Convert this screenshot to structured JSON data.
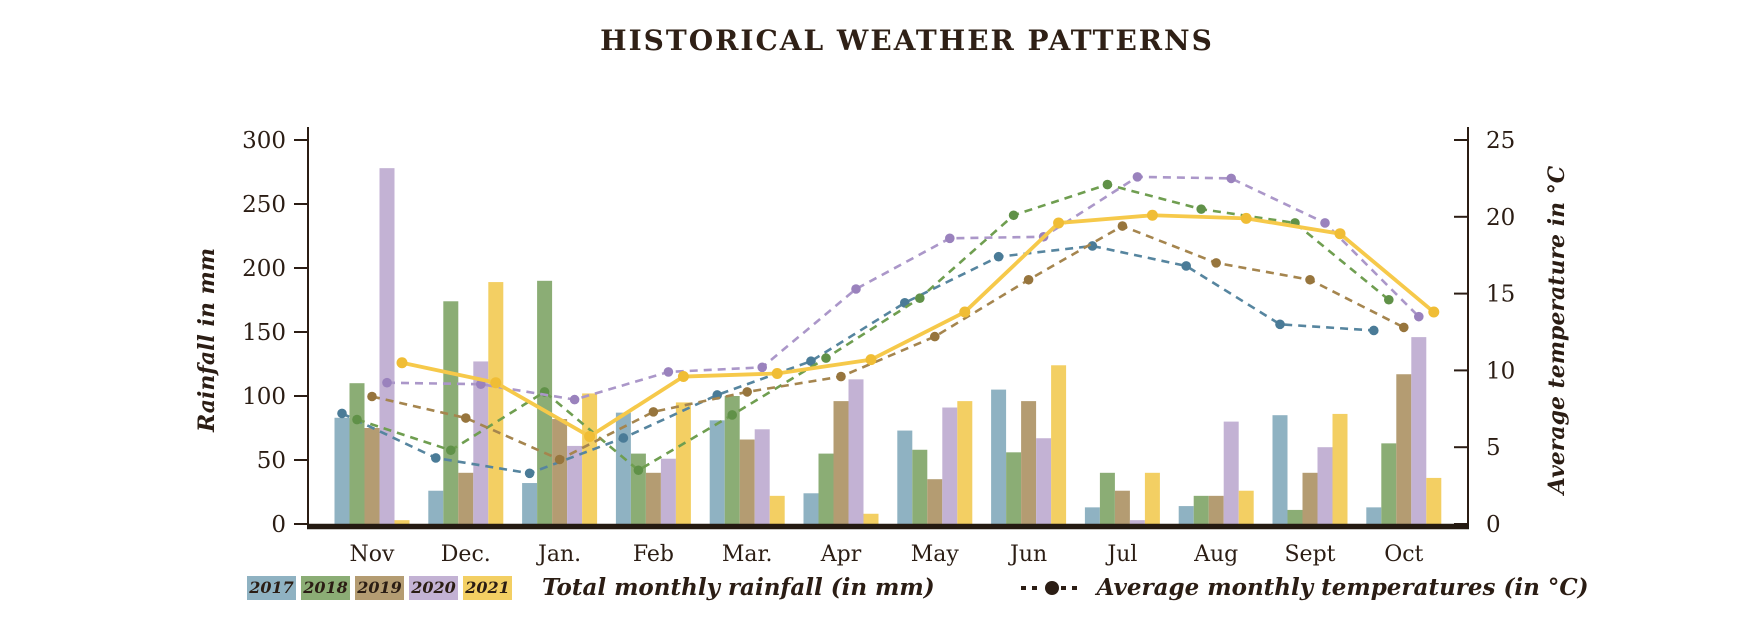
{
  "title": "HISTORICAL WEATHER PATTERNS",
  "legend": {
    "rainfall_label": "Total monthly rainfall (in mm)",
    "temperature_label": "Average monthly temperatures (in °C)"
  },
  "colors": {
    "text": "#2b1d14",
    "axis": "#2b1d14"
  },
  "chart_data": {
    "type": "bar+line",
    "categories": [
      "Nov",
      "Dec.",
      "Jan.",
      "Feb",
      "Mar.",
      "Apr",
      "May",
      "Jun",
      "Jul",
      "Aug",
      "Sept",
      "Oct"
    ],
    "left_axis": {
      "label": "Rainfall in mm",
      "ticks": [
        0,
        50,
        100,
        150,
        200,
        250,
        300
      ],
      "lim": [
        0,
        300
      ]
    },
    "right_axis": {
      "label": "Average temperature in °C",
      "ticks": [
        0,
        5,
        10,
        15,
        20,
        25
      ],
      "lim": [
        0,
        25
      ]
    },
    "grid": false,
    "rainfall_series": [
      {
        "name": "2017",
        "bar_color": "#8fb2c2",
        "values": [
          83,
          26,
          32,
          87,
          81,
          24,
          73,
          105,
          13,
          14,
          85,
          13
        ]
      },
      {
        "name": "2018",
        "bar_color": "#8bad75",
        "values": [
          110,
          174,
          190,
          55,
          100,
          55,
          58,
          56,
          40,
          22,
          11,
          63
        ]
      },
      {
        "name": "2019",
        "bar_color": "#b49c72",
        "values": [
          75,
          40,
          82,
          40,
          66,
          96,
          35,
          96,
          26,
          22,
          40,
          117
        ]
      },
      {
        "name": "2020",
        "bar_color": "#c3b2d4",
        "values": [
          278,
          127,
          61,
          51,
          74,
          113,
          91,
          67,
          3,
          80,
          60,
          146
        ]
      },
      {
        "name": "2021",
        "bar_color": "#f3cf63",
        "values": [
          3,
          189,
          102,
          95,
          22,
          8,
          96,
          124,
          40,
          26,
          86,
          36
        ]
      }
    ],
    "temperature_series": [
      {
        "name": "2017",
        "line_color": "#56859f",
        "dot_color": "#4a7b97",
        "style": "dashed",
        "values": [
          7.2,
          4.3,
          3.3,
          5.6,
          8.4,
          10.6,
          14.4,
          17.4,
          18.1,
          16.8,
          13.0,
          12.6
        ]
      },
      {
        "name": "2018",
        "line_color": "#6f9e50",
        "dot_color": "#609148",
        "style": "dashed",
        "values": [
          6.8,
          4.8,
          8.6,
          3.5,
          7.1,
          10.8,
          14.7,
          20.1,
          22.1,
          20.5,
          19.6,
          14.6
        ]
      },
      {
        "name": "2019",
        "line_color": "#a5854e",
        "dot_color": "#97753d",
        "style": "dashed",
        "values": [
          8.3,
          6.9,
          4.2,
          7.3,
          8.6,
          9.6,
          12.2,
          15.9,
          19.4,
          17.0,
          15.9,
          12.8
        ]
      },
      {
        "name": "2020",
        "line_color": "#ab97c9",
        "dot_color": "#9a82bd",
        "style": "dashed",
        "values": [
          9.2,
          9.1,
          8.1,
          9.9,
          10.2,
          15.3,
          18.6,
          18.7,
          22.6,
          22.5,
          19.6,
          13.5
        ]
      },
      {
        "name": "2021",
        "line_color": "#f6c94a",
        "dot_color": "#f0bd35",
        "style": "solid",
        "values": [
          10.5,
          9.2,
          5.7,
          9.6,
          9.8,
          10.7,
          13.8,
          19.6,
          20.1,
          19.9,
          18.9,
          13.8
        ]
      }
    ]
  }
}
